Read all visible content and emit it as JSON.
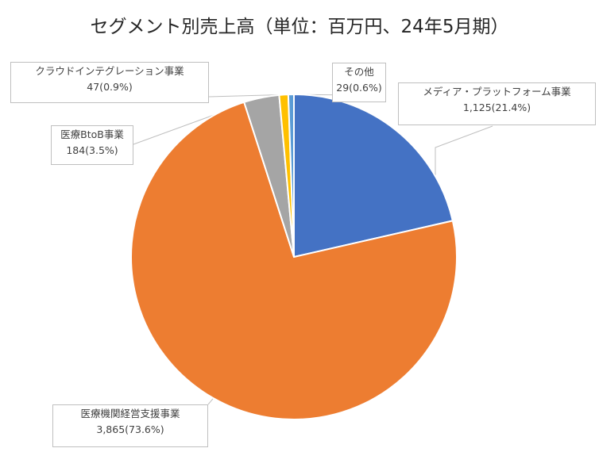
{
  "chart_data": {
    "type": "pie",
    "title": "セグメント別売上高（単位：百万円、24年5月期）",
    "slices": [
      {
        "name": "メディア・プラットフォーム事業",
        "value": 1125,
        "label": "1,125(21.4%)",
        "color": "#4472c4"
      },
      {
        "name": "医療機関経営支援事業",
        "value": 3865,
        "label": "3,865(73.6%)",
        "color": "#ed7d31"
      },
      {
        "name": "医療BtoB事業",
        "value": 184,
        "label": "184(3.5%)",
        "color": "#a5a5a5"
      },
      {
        "name": "クラウドインテグレーション事業",
        "value": 47,
        "label": "47(0.9%)",
        "color": "#ffc000"
      },
      {
        "name": "その他",
        "value": 29,
        "label": "29(0.6%)",
        "color": "#5b9bd5"
      }
    ]
  }
}
